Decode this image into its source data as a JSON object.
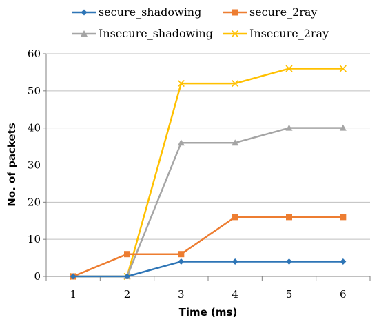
{
  "chart_data": {
    "type": "line",
    "title": "",
    "xlabel": "Time (ms)",
    "ylabel": "No. of packets",
    "x": [
      1,
      2,
      3,
      4,
      5,
      6
    ],
    "ylim": [
      0,
      60
    ],
    "yticks": [
      0,
      10,
      20,
      30,
      40,
      50,
      60
    ],
    "grid": "horizontal",
    "legend_position": "top",
    "series": [
      {
        "name": "secure_shadowing",
        "color": "#2e75b6",
        "marker": "diamond",
        "values": [
          0,
          0,
          4,
          4,
          4,
          4
        ]
      },
      {
        "name": "secure_2ray",
        "color": "#ed7d31",
        "marker": "square",
        "values": [
          0,
          6,
          6,
          16,
          16,
          16
        ]
      },
      {
        "name": "Insecure_shadowing",
        "color": "#a5a5a5",
        "marker": "triangle",
        "values": [
          0,
          0,
          36,
          36,
          40,
          40
        ]
      },
      {
        "name": "Insecure_2ray",
        "color": "#ffc000",
        "marker": "x",
        "values": [
          0,
          0,
          52,
          52,
          56,
          56
        ]
      }
    ]
  }
}
